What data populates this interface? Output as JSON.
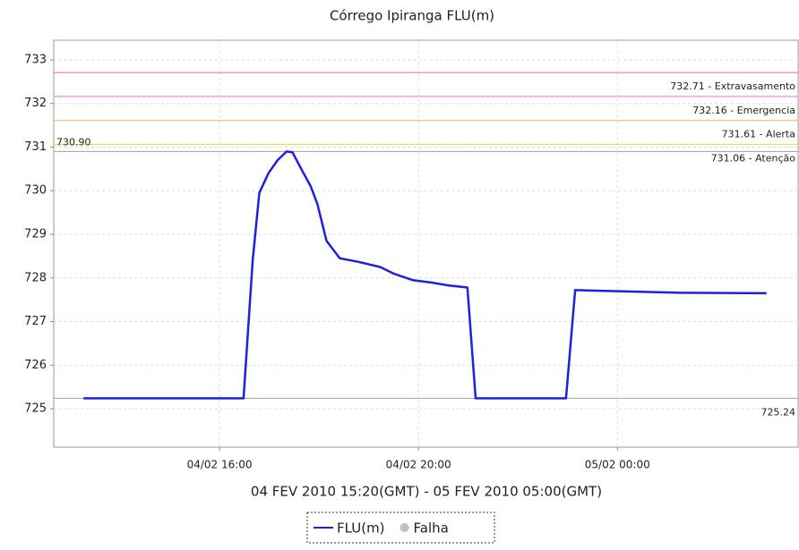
{
  "chart_data": {
    "type": "line",
    "title": "Córrego Ipiranga FLU(m)",
    "x_label": "04 FEV 2010 15:20(GMT) - 05 FEV 2010 05:00(GMT)",
    "xlim": [
      "04/02 12:40",
      "05/02 03:38"
    ],
    "xticks": [
      "04/02 16:00",
      "04/02 20:00",
      "05/02 00:00"
    ],
    "ylim": [
      724.12,
      733.45
    ],
    "yticks": [
      725,
      726,
      727,
      728,
      729,
      730,
      731,
      732,
      733
    ],
    "grid": true,
    "x": [
      "04/02 13:16",
      "04/02 16:29",
      "04/02 16:40",
      "04/02 16:48",
      "04/02 16:59",
      "04/02 17:10",
      "04/02 17:21",
      "04/02 17:28",
      "04/02 17:40",
      "04/02 17:50",
      "04/02 17:58",
      "04/02 18:09",
      "04/02 18:25",
      "04/02 18:47",
      "04/02 19:14",
      "04/02 19:30",
      "04/02 19:53",
      "04/02 20:14",
      "04/02 20:36",
      "04/02 20:59",
      "04/02 21:09",
      "04/02 22:58",
      "04/02 23:09",
      "04/02 23:28",
      "05/02 01:16",
      "05/02 03:00"
    ],
    "series": [
      {
        "name": "FLU(m)",
        "color": "#1f1fe6",
        "values": [
          725.24,
          725.24,
          728.4,
          729.95,
          730.4,
          730.7,
          730.9,
          730.88,
          730.45,
          730.1,
          729.7,
          728.85,
          728.45,
          728.37,
          728.25,
          728.1,
          727.95,
          727.9,
          727.83,
          727.78,
          725.24,
          725.24,
          727.72,
          727.71,
          727.66,
          727.65
        ]
      },
      {
        "name": "Falha",
        "color": "#c0c0c0",
        "marker": "circle"
      }
    ],
    "reference_lines": [
      {
        "value": 732.71,
        "label": "732.71 - Extravasamento",
        "color": "#ff6666",
        "anchor": "right"
      },
      {
        "value": 732.16,
        "label": "732.16 - Emergencia",
        "color": "#ff66ff",
        "anchor": "right"
      },
      {
        "value": 731.61,
        "label": "731.61 - Alerta",
        "color": "#ffb366",
        "anchor": "right"
      },
      {
        "value": 731.06,
        "label": "731.06 - Atenção",
        "color": "#e6e633",
        "anchor": "right"
      },
      {
        "value": 730.9,
        "label": "730.90",
        "color": "#a0a0a0",
        "anchor": "left"
      },
      {
        "value": 725.24,
        "label": "725.24",
        "color": "#a0a0a0",
        "anchor": "right"
      }
    ]
  }
}
